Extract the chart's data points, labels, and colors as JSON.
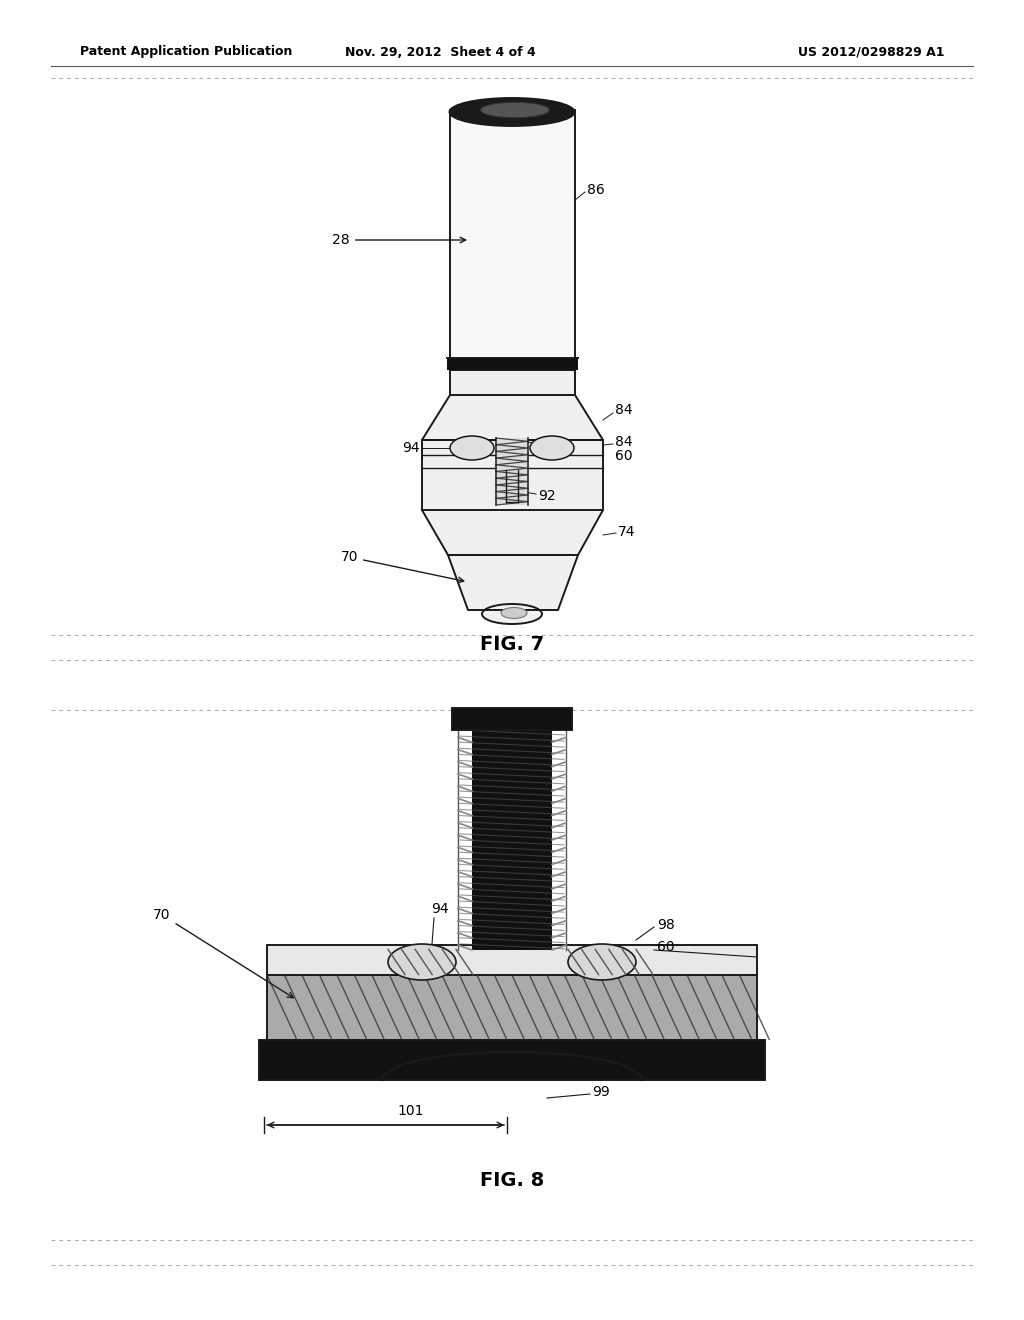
{
  "bg_color": "#ffffff",
  "header_text": "Patent Application Publication",
  "header_date": "Nov. 29, 2012  Sheet 4 of 4",
  "header_patent": "US 2012/0298829 A1",
  "fig7_label": "FIG. 7",
  "fig8_label": "FIG. 8",
  "lc": "#1a1a1a",
  "lw": 1.4
}
